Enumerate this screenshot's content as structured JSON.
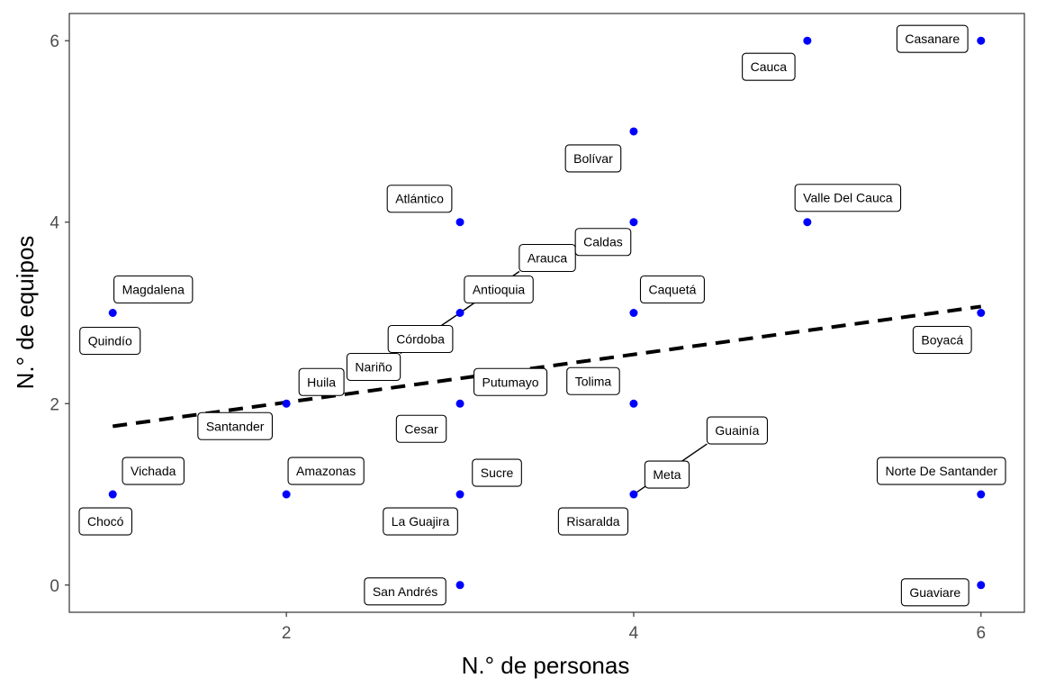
{
  "chart_data": {
    "type": "scatter",
    "xlabel": "N.° de personas",
    "ylabel": "N.° de equipos",
    "xlim": [
      0.75,
      6.25
    ],
    "ylim": [
      -0.3,
      6.3
    ],
    "x_ticks": [
      2,
      4,
      6
    ],
    "y_ticks": [
      0,
      2,
      4,
      6
    ],
    "grid": false,
    "point_color": "#0000ff",
    "trend_line": {
      "style": "dashed",
      "color": "#000000",
      "x": [
        1,
        6
      ],
      "y": [
        1.75,
        3.07
      ]
    },
    "points": [
      {
        "label": "Magdalena",
        "x": 1,
        "y": 3
      },
      {
        "label": "Quindío",
        "x": 1,
        "y": 3
      },
      {
        "label": "Vichada",
        "x": 1,
        "y": 1
      },
      {
        "label": "Chocó",
        "x": 1,
        "y": 1
      },
      {
        "label": "Huila",
        "x": 2,
        "y": 2
      },
      {
        "label": "Santander",
        "x": 2,
        "y": 2
      },
      {
        "label": "Amazonas",
        "x": 2,
        "y": 1
      },
      {
        "label": "Atlántico",
        "x": 3,
        "y": 4
      },
      {
        "label": "Arauca",
        "x": 3,
        "y": 3
      },
      {
        "label": "Antioquia",
        "x": 3,
        "y": 3
      },
      {
        "label": "Córdoba",
        "x": 3,
        "y": 3
      },
      {
        "label": "Nariño",
        "x": 3,
        "y": 3
      },
      {
        "label": "Cesar",
        "x": 3,
        "y": 2
      },
      {
        "label": "Putumayo",
        "x": 3,
        "y": 2
      },
      {
        "label": "Sucre",
        "x": 3,
        "y": 1
      },
      {
        "label": "La Guajira",
        "x": 3,
        "y": 1
      },
      {
        "label": "San Andrés",
        "x": 3,
        "y": 0
      },
      {
        "label": "Bolívar",
        "x": 4,
        "y": 5
      },
      {
        "label": "Caldas",
        "x": 4,
        "y": 4
      },
      {
        "label": "Caquetá",
        "x": 4,
        "y": 3
      },
      {
        "label": "Tolima",
        "x": 4,
        "y": 2
      },
      {
        "label": "Meta",
        "x": 4,
        "y": 1
      },
      {
        "label": "Guainía",
        "x": 4,
        "y": 1
      },
      {
        "label": "Risaralda",
        "x": 4,
        "y": 1
      },
      {
        "label": "Cauca",
        "x": 5,
        "y": 6
      },
      {
        "label": "Valle Del Cauca",
        "x": 5,
        "y": 4
      },
      {
        "label": "Casanare",
        "x": 6,
        "y": 6
      },
      {
        "label": "Boyacá",
        "x": 6,
        "y": 3
      },
      {
        "label": "Norte De Santander",
        "x": 6,
        "y": 1
      },
      {
        "label": "Guaviare",
        "x": 6,
        "y": 0
      }
    ]
  }
}
